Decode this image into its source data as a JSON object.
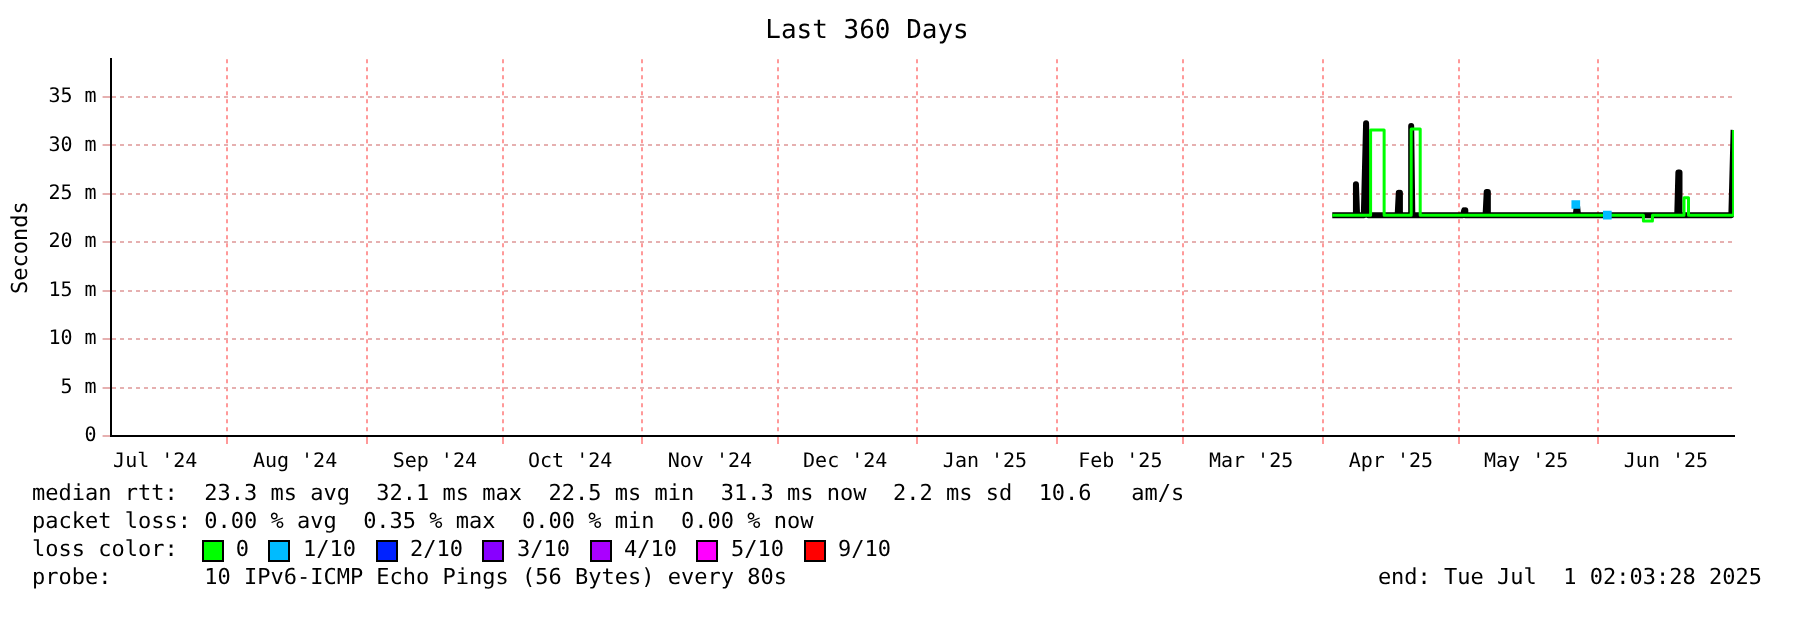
{
  "chart_data": {
    "type": "line",
    "title": "Last 360 Days",
    "ylabel": "Seconds",
    "xlim": [
      "2024-07-06T02:03",
      "2025-07-01T02:03"
    ],
    "xticks": [
      {
        "value": "2024-07-16",
        "label": "Jul '24"
      },
      {
        "value": "2024-08-01",
        "label": null
      },
      {
        "value": "2024-08-16",
        "label": "Aug '24"
      },
      {
        "value": "2024-09-01",
        "label": null
      },
      {
        "value": "2024-09-16",
        "label": "Sep '24"
      },
      {
        "value": "2024-10-01",
        "label": null
      },
      {
        "value": "2024-10-16",
        "label": "Oct '24"
      },
      {
        "value": "2024-11-01",
        "label": null
      },
      {
        "value": "2024-11-16",
        "label": "Nov '24"
      },
      {
        "value": "2024-12-01",
        "label": null
      },
      {
        "value": "2024-12-16",
        "label": "Dec '24"
      },
      {
        "value": "2025-01-01",
        "label": null
      },
      {
        "value": "2025-01-16",
        "label": "Jan '25"
      },
      {
        "value": "2025-02-01",
        "label": null
      },
      {
        "value": "2025-02-15",
        "label": "Feb '25"
      },
      {
        "value": "2025-03-01",
        "label": null
      },
      {
        "value": "2025-03-16",
        "label": "Mar '25"
      },
      {
        "value": "2025-04-01",
        "label": null
      },
      {
        "value": "2025-04-16",
        "label": "Apr '25"
      },
      {
        "value": "2025-05-01",
        "label": null
      },
      {
        "value": "2025-05-16",
        "label": "May '25"
      },
      {
        "value": "2025-06-01",
        "label": null
      },
      {
        "value": "2025-06-16",
        "label": "Jun '25"
      }
    ],
    "ylim": [
      0,
      38.9
    ],
    "yticks": [
      0,
      {
        "value": 5,
        "label": "5 m"
      },
      {
        "value": 10,
        "label": "10 m"
      },
      {
        "value": 15,
        "label": "15 m"
      },
      {
        "value": 20,
        "label": "20 m"
      },
      {
        "value": 25,
        "label": "25 m"
      },
      {
        "value": 30,
        "label": "30 m"
      },
      {
        "value": 35,
        "label": "35 m"
      }
    ],
    "grid": true,
    "legend": "bottom",
    "legend_title": "loss color:",
    "marker": "none",
    "line_style": "solid",
    "series": [
      {
        "type": "line",
        "color": "#000000",
        "x": [
          "2025-04-03",
          "2025-04-08",
          "2025-04-08T06:00",
          "2025-04-08T12:00",
          "2025-04-10",
          "2025-04-10T12:00",
          "2025-04-11",
          "2025-04-17T12:00",
          "2025-04-17T18:00",
          "2025-04-18",
          "2025-04-20T06:00",
          "2025-04-20T12:00",
          "2025-04-20T18:00",
          "2025-05-02",
          "2025-05-02T06:00",
          "2025-05-02T12:00",
          "2025-05-07",
          "2025-05-07T06:00",
          "2025-05-07T12:00",
          "2025-05-27",
          "2025-05-27T06:00",
          "2025-05-27T12:00",
          "2025-06-18T12:00",
          "2025-06-18T18:00",
          "2025-06-19",
          "2025-06-30T12:00",
          "2025-07-01"
        ],
        "values": [
          22.8,
          22.8,
          26.0,
          22.8,
          22.8,
          32.3,
          22.8,
          22.8,
          25.1,
          22.8,
          22.8,
          32.0,
          22.8,
          22.8,
          23.3,
          22.8,
          22.8,
          25.2,
          22.8,
          22.8,
          23.9,
          22.8,
          22.8,
          27.2,
          22.8,
          22.8,
          31.6
        ]
      },
      {
        "type": "step",
        "name": "0",
        "color": "#00ff00",
        "x": [
          "2025-04-03",
          "2025-04-11",
          "2025-04-11T12:00",
          "2025-04-14",
          "2025-04-14T12:00",
          "2025-04-20",
          "2025-04-20T12:00",
          "2025-04-22",
          "2025-04-22T12:00",
          "2025-06-11",
          "2025-06-13",
          "2025-06-20",
          "2025-06-21",
          "2025-06-30T12:00",
          "2025-07-01"
        ],
        "values": [
          22.8,
          22.8,
          31.6,
          31.6,
          22.8,
          22.8,
          31.7,
          31.7,
          22.8,
          22.2,
          22.8,
          24.6,
          22.8,
          22.8,
          31.6
        ]
      },
      {
        "type": "scatter",
        "name": "1/10",
        "color": "#00bbff",
        "marker": "square",
        "x": [
          "2025-05-27",
          "2025-06-03"
        ],
        "values": [
          23.9,
          22.8
        ]
      },
      {
        "type": "step",
        "name": "2/10",
        "color": "#0022ff"
      },
      {
        "type": "step",
        "name": "3/10",
        "color": "#8800ff"
      },
      {
        "type": "step",
        "name": "4/10",
        "color": "#aa00ff"
      },
      {
        "type": "step",
        "name": "5/10",
        "color": "#ff00ff"
      },
      {
        "type": "step",
        "name": "9/10",
        "color": "#ff0000"
      }
    ],
    "annotations": [
      "median rtt:  23.3 ms avg  32.1 ms max  22.5 ms min  31.3 ms now  2.2 ms sd  10.6   am/s",
      "packet loss: 0.00 % avg  0.35 % max  0.00 % min  0.00 % now",
      "probe:       10 IPv6-ICMP Echo Pings (56 Bytes) every 80s",
      "end: Tue Jul  1 02:03:28 2025"
    ]
  }
}
